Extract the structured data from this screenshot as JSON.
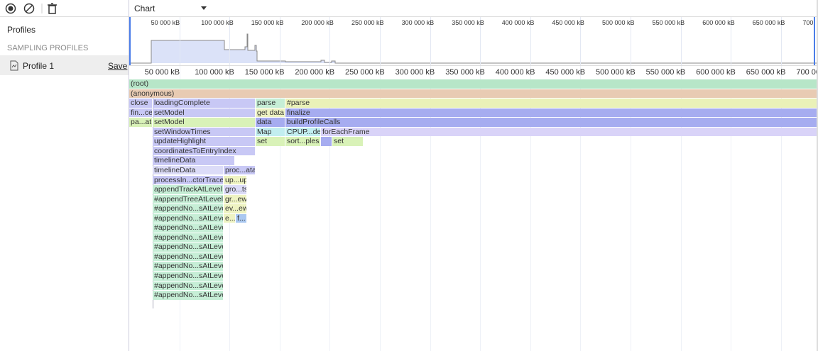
{
  "sidebar": {
    "title": "Profiles",
    "section": "SAMPLING PROFILES",
    "profile": "Profile 1",
    "save": "Save"
  },
  "view_select": "Chart",
  "overview_ticks": [
    "50 000 kB",
    "100 000 kB",
    "150 000 kB",
    "200 000 kB",
    "250 000 kB",
    "300 000 kB",
    "350 000 kB",
    "400 000 kB",
    "450 000 kB",
    "500 000 kB",
    "550 000 kB",
    "600 000 kB",
    "650 000 kB",
    "700"
  ],
  "main_ticks": [
    "50 000 kB",
    "100 000 kB",
    "150 000 kB",
    "200 000 kB",
    "250 000 kB",
    "300 000 kB",
    "350 000 kB",
    "400 000 kB",
    "450 000 kB",
    "500 000 kB",
    "550 000 kB",
    "600 000 kB",
    "650 000 kB",
    "700 00"
  ],
  "flame_rows": [
    [
      "(root)"
    ],
    [
      "(anonymous)"
    ],
    [
      "close",
      "loadingComplete",
      "parse",
      "#parse"
    ],
    [
      "fin...ce",
      "setModel",
      "get data",
      "finalize"
    ],
    [
      "pa...at",
      "setModel",
      "data",
      "buildProfileCalls"
    ],
    [
      "setWindowTimes",
      "Map",
      "CPUP...del",
      "forEachFrame"
    ],
    [
      "updateHighlight",
      "set",
      "sort...ples",
      null,
      "set"
    ],
    [
      "coordinatesToEntryIndex"
    ],
    [
      "timelineData"
    ],
    [
      "timelineData",
      "proc...ata"
    ],
    [
      "processIn...ctorTrace",
      "up...up"
    ],
    [
      "appendTrackAtLevel",
      "gro...ts"
    ],
    [
      "#appendTreeAtLevel",
      "gr...ew"
    ],
    [
      "#appendNo...sAtLevel",
      "ev...ew"
    ],
    [
      "#appendNo...sAtLevel",
      "e...",
      "f..."
    ],
    [
      "#appendNo...sAtLevel"
    ],
    [
      "#appendNo...sAtLevel"
    ],
    [
      "#appendNo...sAtLevel"
    ],
    [
      "#appendNo...sAtLevel"
    ],
    [
      "#appendNo...sAtLevel"
    ],
    [
      "#appendNo...sAtLevel"
    ],
    [
      "#appendNo...sAtLevel"
    ],
    [
      "#appendNo...sAtLevel"
    ]
  ]
}
